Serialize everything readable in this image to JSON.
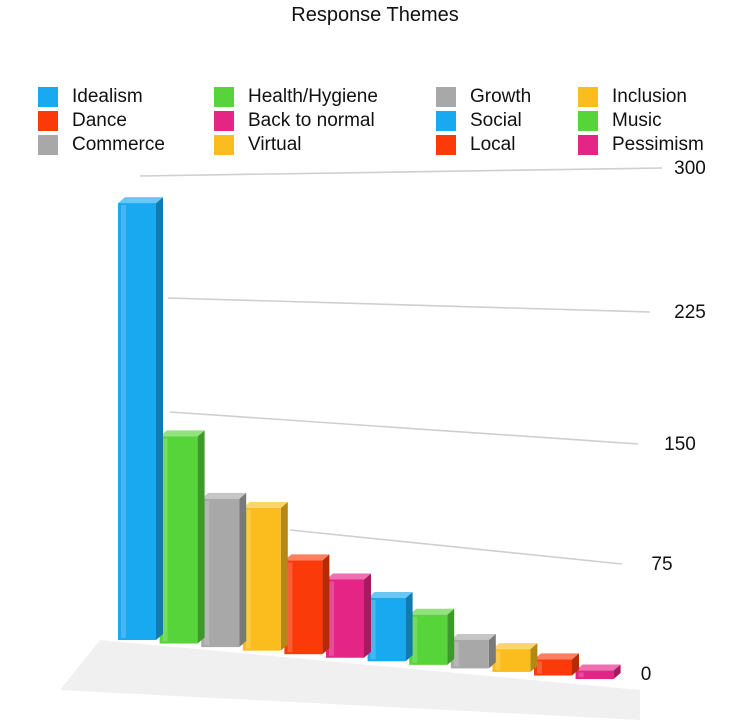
{
  "chart_data": {
    "type": "bar",
    "title": "Response Themes",
    "categories": [
      "Idealism",
      "Health/Hygiene",
      "Commerce",
      "Virtual",
      "Dance",
      "Back to normal",
      "Social",
      "Music",
      "Growth",
      "Inclusion",
      "Local",
      "Pessimism"
    ],
    "values": [
      290,
      140,
      102,
      100,
      67,
      57,
      47,
      38,
      22,
      18,
      13,
      7
    ],
    "colors": [
      "#19a9f0",
      "#57d43a",
      "#a8a8a8",
      "#fbbd1d",
      "#fb3a0a",
      "#e42585",
      "#19a9f0",
      "#57d43a",
      "#a8a8a8",
      "#fbbd1d",
      "#fb3a0a",
      "#e42585"
    ],
    "ylim": [
      0,
      300
    ],
    "yticks": [
      0,
      75,
      150,
      225,
      300
    ],
    "grid": true,
    "legend_position": "top",
    "legend": [
      {
        "label": "Idealism",
        "color": "#19a9f0"
      },
      {
        "label": "Dance",
        "color": "#fb3a0a"
      },
      {
        "label": "Commerce",
        "color": "#a8a8a8"
      },
      {
        "label": "Health/Hygiene",
        "color": "#57d43a"
      },
      {
        "label": "Back to normal",
        "color": "#e42585"
      },
      {
        "label": "Virtual",
        "color": "#fbbd1d"
      },
      {
        "label": "Growth",
        "color": "#a8a8a8"
      },
      {
        "label": "Social",
        "color": "#19a9f0"
      },
      {
        "label": "Local",
        "color": "#fb3a0a"
      },
      {
        "label": "Inclusion",
        "color": "#fbbd1d"
      },
      {
        "label": "Music",
        "color": "#57d43a"
      },
      {
        "label": "Pessimism",
        "color": "#e42585"
      }
    ]
  }
}
